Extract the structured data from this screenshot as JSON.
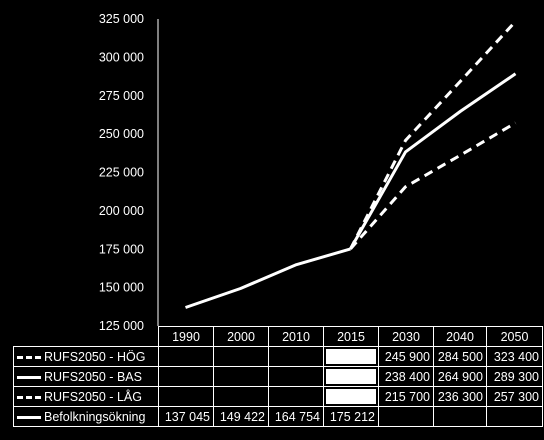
{
  "chart_data": {
    "type": "line",
    "categories": [
      "1990",
      "2000",
      "2010",
      "2015",
      "2030",
      "2040",
      "2050"
    ],
    "ylim": [
      125000,
      325000
    ],
    "y_ticks": [
      "125 000",
      "150 000",
      "175 000",
      "200 000",
      "225 000",
      "250 000",
      "275 000",
      "300 000",
      "325 000"
    ],
    "series": [
      {
        "name": "RUFS2050 - HÖG",
        "style": "dashed",
        "values": [
          null,
          null,
          null,
          175212,
          245900,
          284500,
          323400
        ],
        "labels": [
          "",
          "",
          "",
          "",
          "245 900",
          "284 500",
          "323 400"
        ]
      },
      {
        "name": "RUFS2050 - BAS",
        "style": "solid",
        "values": [
          null,
          null,
          null,
          175212,
          238400,
          264900,
          289300
        ],
        "labels": [
          "",
          "",
          "",
          "",
          "238 400",
          "264 900",
          "289 300"
        ]
      },
      {
        "name": "RUFS2050 - LÅG",
        "style": "dashed",
        "values": [
          null,
          null,
          null,
          175212,
          215700,
          236300,
          257300
        ],
        "labels": [
          "",
          "",
          "",
          "",
          "215 700",
          "236 300",
          "257 300"
        ]
      },
      {
        "name": "Befolkningsökning",
        "style": "solid",
        "values": [
          137045,
          149422,
          164754,
          175212,
          null,
          null,
          null
        ],
        "labels": [
          "137 045",
          "149 422",
          "164 754",
          "175 212",
          "",
          "",
          ""
        ]
      }
    ],
    "grid": false,
    "legend": "data-table-below",
    "colors": {
      "background": "#000000",
      "line": "#ffffff"
    }
  }
}
